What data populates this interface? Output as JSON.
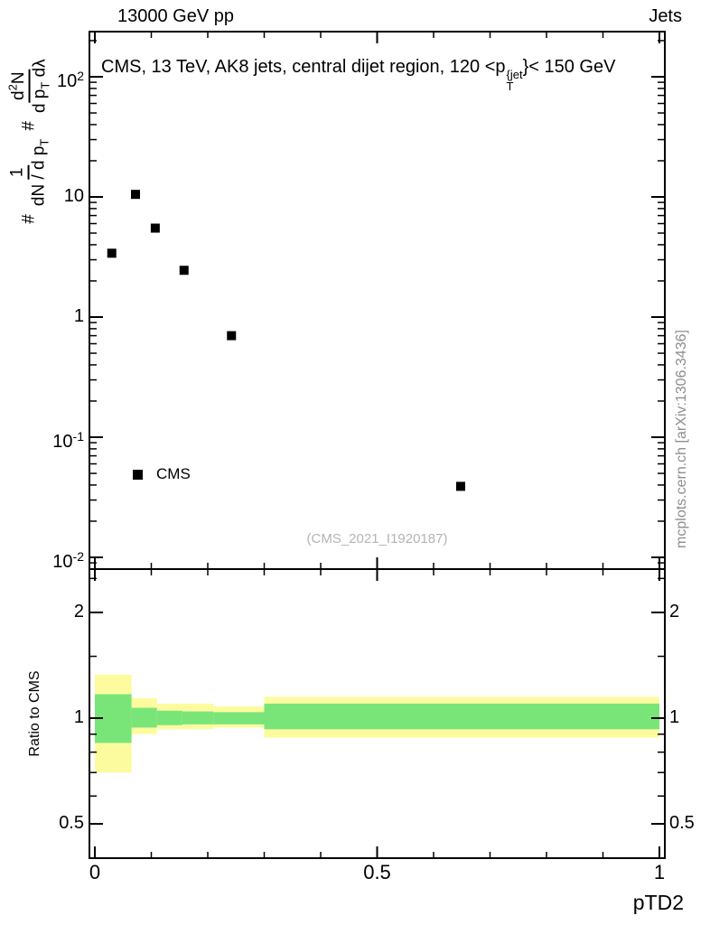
{
  "header": {
    "left": "13000 GeV pp",
    "right": "Jets"
  },
  "main_panel": {
    "title": {
      "pre": "CMS, 13 TeV, AK8 jets, central dijet region, 120 <p",
      "sup": "{jet",
      "sub": "T",
      "post": "}< 150 GeV"
    },
    "legend_label": "CMS",
    "watermark": "(CMS_2021_I1920187)",
    "side_note": "mcplots.cern.ch [arXiv:1306.3436]"
  },
  "axes": {
    "xlabel": "pTD2",
    "ratio_ylabel": "Ratio to CMS",
    "main_y": {
      "hash1": "#",
      "f1_num": "1",
      "f1_den": "dN / d p",
      "f1_den_sub": "T",
      "hash2": "#",
      "f2_num": "d",
      "f2_num_sup": "2",
      "f2_num_tail": "N",
      "f2_den": "d p",
      "f2_den_sub": "T",
      "f2_den_tail": " dλ"
    }
  },
  "chart_data": [
    {
      "type": "scatter",
      "title": "CMS, 13 TeV, AK8 jets, central dijet region, 120 < pT{jet} < 150 GeV",
      "xlabel": "pTD2",
      "ylabel": "# 1/(dN/dpT) # d2N/(dpT dlambda)",
      "xlim": [
        0,
        1
      ],
      "ylim": [
        0.008,
        240
      ],
      "yscale": "log",
      "grid": false,
      "x_axis": {
        "major": [
          {
            "v": 0,
            "label": "0"
          },
          {
            "v": 0.5,
            "label": "0.5"
          },
          {
            "v": 1,
            "label": "1"
          }
        ],
        "minor_step": 0.1
      },
      "y_axis": {
        "ticks": [
          {
            "v": 100,
            "label": "10",
            "exp": "2"
          },
          {
            "v": 10,
            "label": "10"
          },
          {
            "v": 1,
            "label": "1"
          },
          {
            "v": 0.1,
            "label": "10",
            "exp": "-1"
          },
          {
            "v": 0.01,
            "label": "10",
            "exp": "-2"
          }
        ]
      },
      "series": [
        {
          "name": "CMS",
          "marker": "filled-square",
          "color": "#000000",
          "points": [
            [
              0.03,
              3.4
            ],
            [
              0.072,
              10.5
            ],
            [
              0.107,
              5.5
            ],
            [
              0.158,
              2.45
            ],
            [
              0.242,
              0.7
            ],
            [
              0.648,
              0.039
            ]
          ]
        }
      ]
    },
    {
      "type": "band-ratio",
      "ylabel": "Ratio to CMS",
      "yscale": "log",
      "ylim": [
        0.4,
        2.66
      ],
      "y_axis": {
        "ticks": [
          {
            "v": 2,
            "label": "2"
          },
          {
            "v": 1,
            "label": "1"
          },
          {
            "v": 0.5,
            "label": "0.5"
          }
        ],
        "minor": [
          0.6,
          0.7,
          0.8,
          0.9,
          1.5,
          2.5
        ]
      },
      "bands": [
        {
          "name": "total-uncertainty",
          "color": "#fcfc9e",
          "segments": [
            {
              "x0": 0.0,
              "x1": 0.065,
              "lo": 0.7,
              "hi": 1.33
            },
            {
              "x0": 0.065,
              "x1": 0.11,
              "lo": 0.9,
              "hi": 1.14
            },
            {
              "x0": 0.11,
              "x1": 0.155,
              "lo": 0.93,
              "hi": 1.1
            },
            {
              "x0": 0.155,
              "x1": 0.21,
              "lo": 0.93,
              "hi": 1.1
            },
            {
              "x0": 0.21,
              "x1": 0.3,
              "lo": 0.94,
              "hi": 1.08
            },
            {
              "x0": 0.3,
              "x1": 1.0,
              "lo": 0.88,
              "hi": 1.15
            }
          ]
        },
        {
          "name": "stat-uncertainty",
          "color": "#79e579",
          "segments": [
            {
              "x0": 0.0,
              "x1": 0.065,
              "lo": 0.85,
              "hi": 1.17
            },
            {
              "x0": 0.065,
              "x1": 0.11,
              "lo": 0.94,
              "hi": 1.07
            },
            {
              "x0": 0.11,
              "x1": 0.155,
              "lo": 0.955,
              "hi": 1.05
            },
            {
              "x0": 0.155,
              "x1": 0.21,
              "lo": 0.96,
              "hi": 1.045
            },
            {
              "x0": 0.21,
              "x1": 0.3,
              "lo": 0.96,
              "hi": 1.04
            },
            {
              "x0": 0.3,
              "x1": 1.0,
              "lo": 0.93,
              "hi": 1.1
            }
          ]
        }
      ]
    }
  ]
}
